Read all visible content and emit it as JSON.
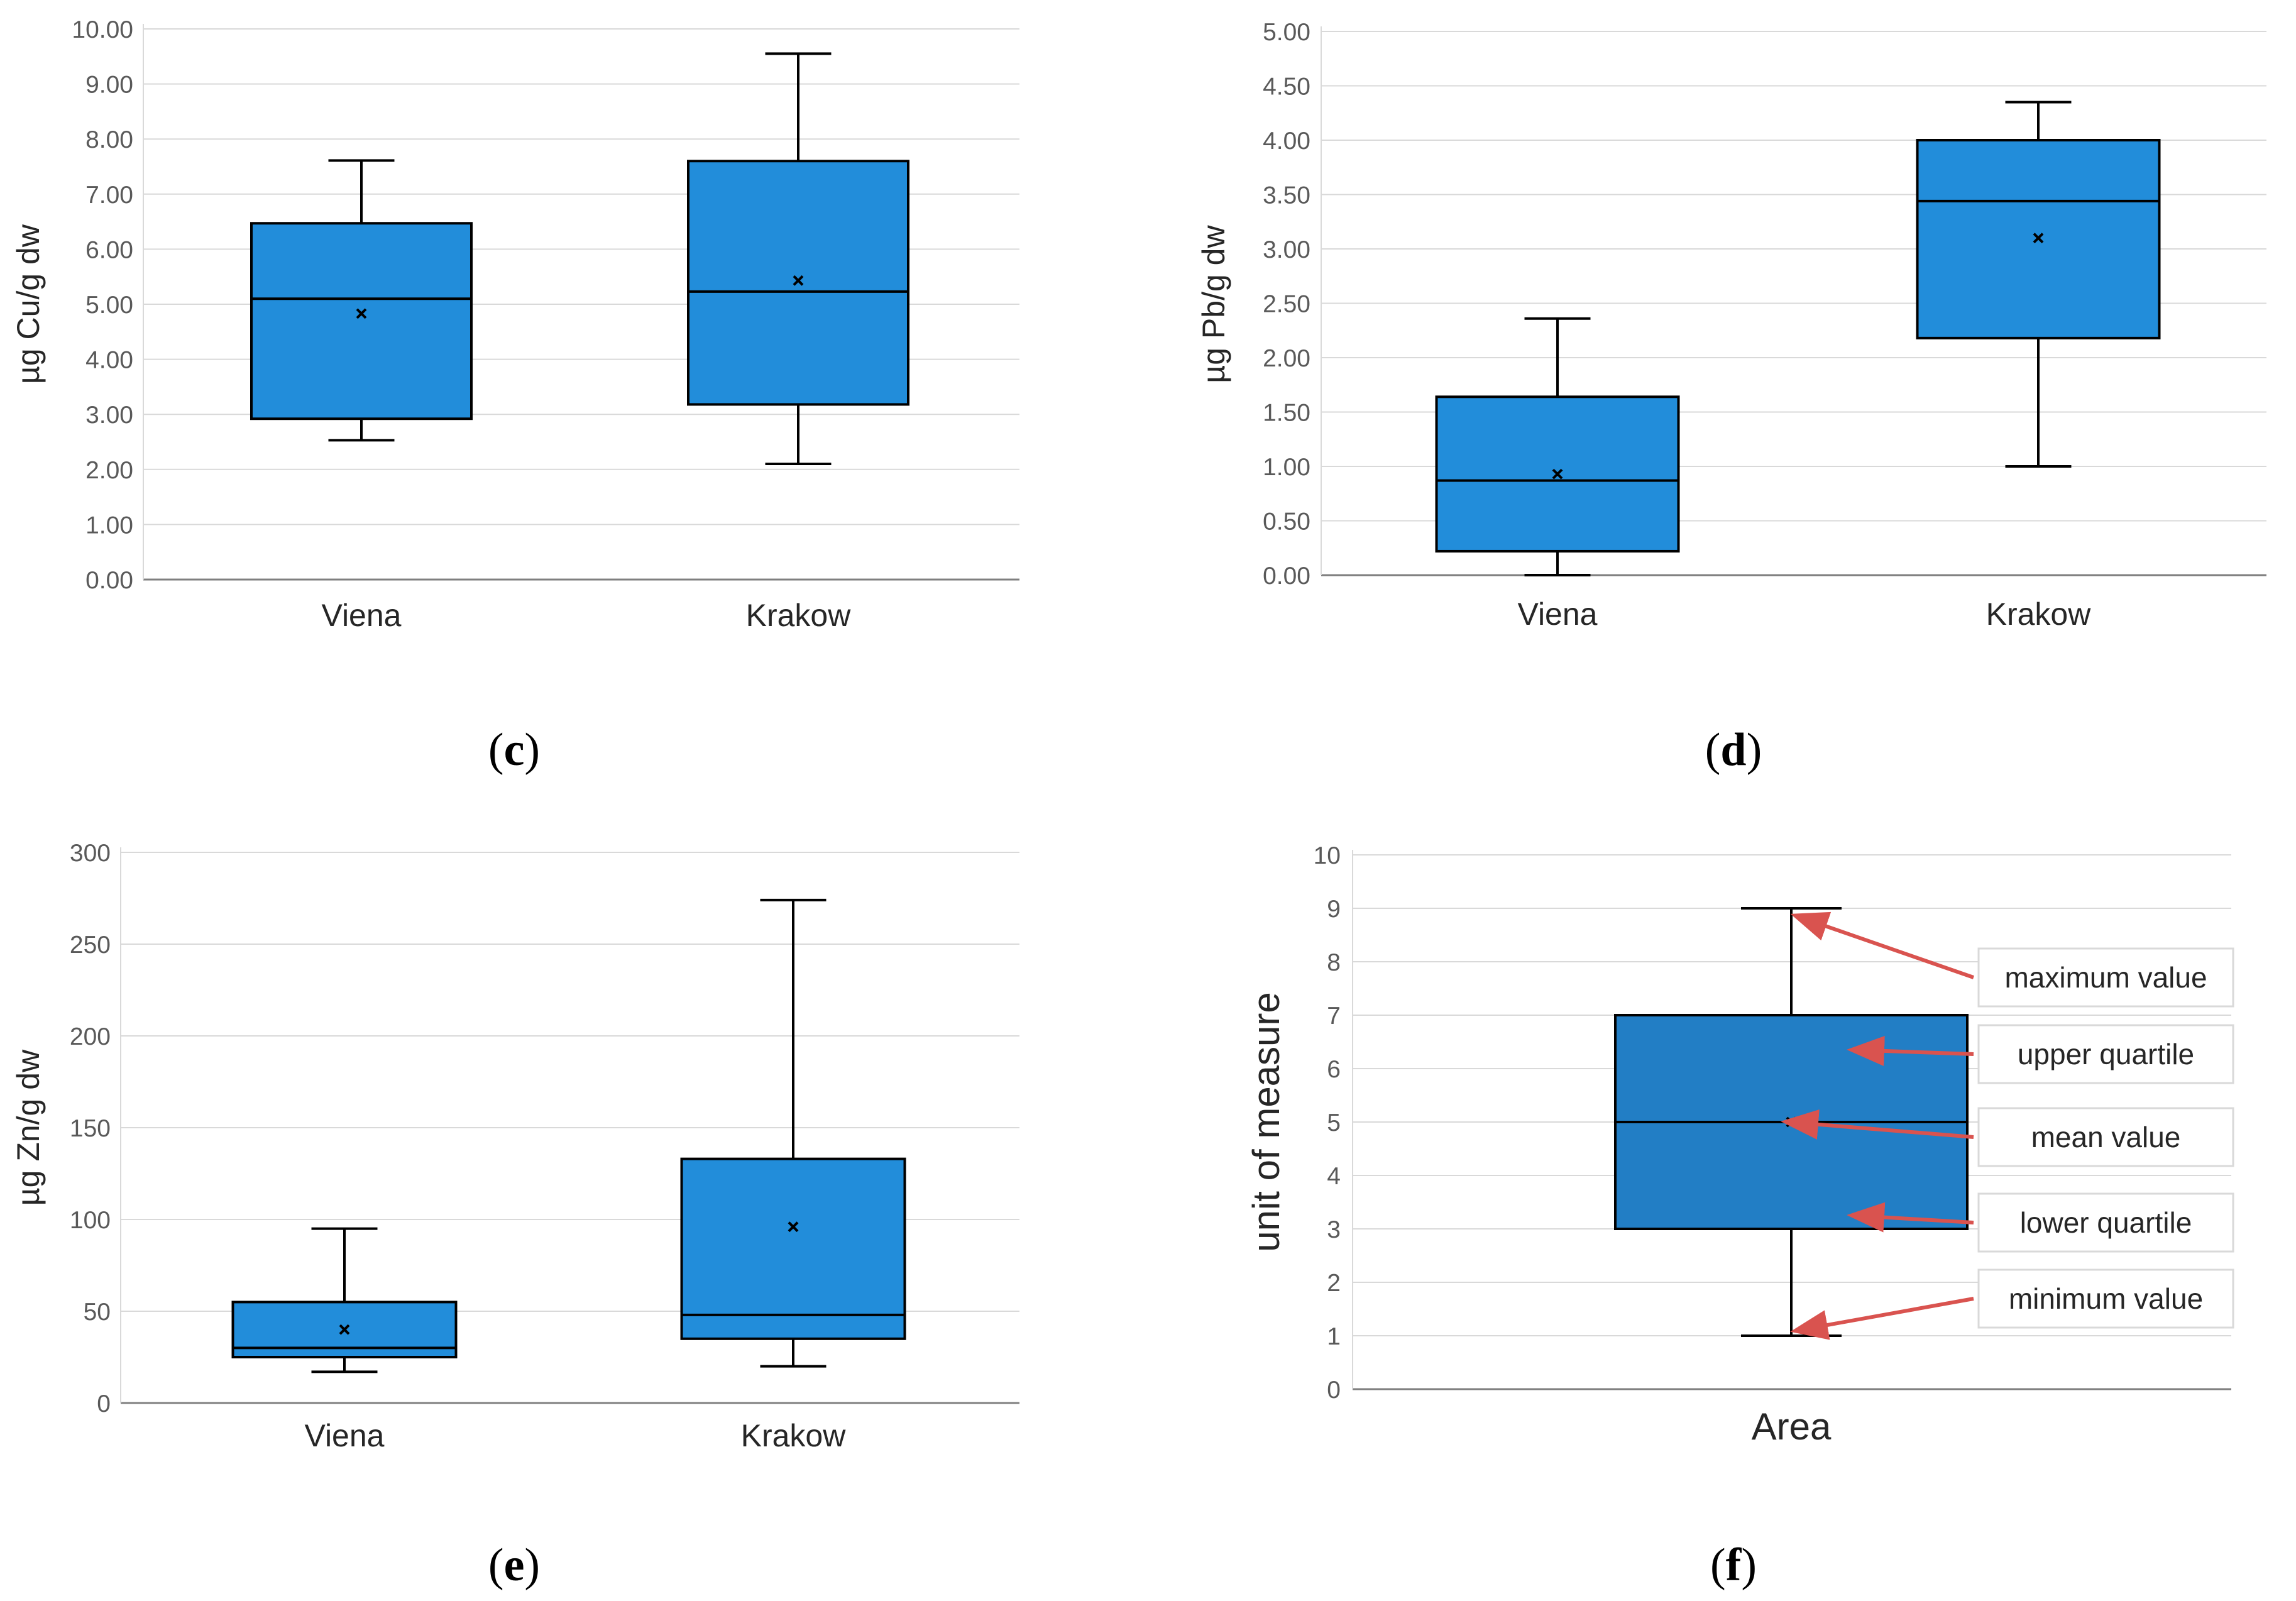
{
  "colors": {
    "box_fill": "#228DDA",
    "box_fill_legend": "#227EC5",
    "box_stroke": "#000000",
    "grid": "#D9D9D9",
    "axis": "#7F7F7F",
    "arrow": "#D9534F"
  },
  "chart_data": [
    {
      "id": "c",
      "type": "box",
      "panel_label": "c",
      "ylabel": "µg Cu/g dw",
      "xlabel": "",
      "ylim": [
        0,
        10
      ],
      "yticks": [
        0,
        1,
        2,
        3,
        4,
        5,
        6,
        7,
        8,
        9,
        10
      ],
      "decimals": 2,
      "categories": [
        "Viena",
        "Krakow"
      ],
      "boxes": [
        {
          "category": "Viena",
          "min": 2.53,
          "q1": 2.92,
          "median": 5.1,
          "q3": 6.47,
          "max": 7.61,
          "mean": 4.83
        },
        {
          "category": "Krakow",
          "min": 2.1,
          "q1": 3.18,
          "median": 5.23,
          "q3": 7.6,
          "max": 9.55,
          "mean": 5.43
        }
      ]
    },
    {
      "id": "d",
      "type": "box",
      "panel_label": "d",
      "ylabel": "µg Pb/g dw",
      "xlabel": "",
      "ylim": [
        0,
        5
      ],
      "yticks": [
        0,
        0.5,
        1,
        1.5,
        2,
        2.5,
        3,
        3.5,
        4,
        4.5,
        5
      ],
      "decimals": 2,
      "categories": [
        "Viena",
        "Krakow"
      ],
      "boxes": [
        {
          "category": "Viena",
          "min": 0.0,
          "q1": 0.22,
          "median": 0.87,
          "q3": 1.64,
          "max": 2.36,
          "mean": 0.93
        },
        {
          "category": "Krakow",
          "min": 1.0,
          "q1": 2.18,
          "median": 3.44,
          "q3": 4.0,
          "max": 4.35,
          "mean": 3.1
        }
      ]
    },
    {
      "id": "e",
      "type": "box",
      "panel_label": "e",
      "ylabel": "µg Zn/g dw",
      "xlabel": "",
      "ylim": [
        0,
        300
      ],
      "yticks": [
        0,
        50,
        100,
        150,
        200,
        250,
        300
      ],
      "decimals": 0,
      "categories": [
        "Viena",
        "Krakow"
      ],
      "boxes": [
        {
          "category": "Viena",
          "min": 17,
          "q1": 25,
          "median": 30,
          "q3": 55,
          "max": 95,
          "mean": 40
        },
        {
          "category": "Krakow",
          "min": 20,
          "q1": 35,
          "median": 48,
          "q3": 133,
          "max": 274,
          "mean": 96
        }
      ]
    },
    {
      "id": "f",
      "type": "box",
      "panel_label": "f",
      "ylabel": "unit of measure",
      "xlabel": "",
      "ylim": [
        0,
        10
      ],
      "yticks": [
        0,
        1,
        2,
        3,
        4,
        5,
        6,
        7,
        8,
        9,
        10
      ],
      "decimals": 0,
      "categories": [
        "Area"
      ],
      "boxes": [
        {
          "category": "Area",
          "min": 1,
          "q1": 3,
          "median": 5,
          "q3": 7,
          "max": 9,
          "mean": 5
        }
      ],
      "annotations": [
        {
          "text": "maximum value",
          "target": 8.85
        },
        {
          "text": "upper quartile",
          "target": 6.35
        },
        {
          "text": "mean value",
          "target": 5.0
        },
        {
          "text": "lower quartile",
          "target": 3.25
        },
        {
          "text": "minimum value",
          "target": 1.1
        }
      ]
    }
  ]
}
